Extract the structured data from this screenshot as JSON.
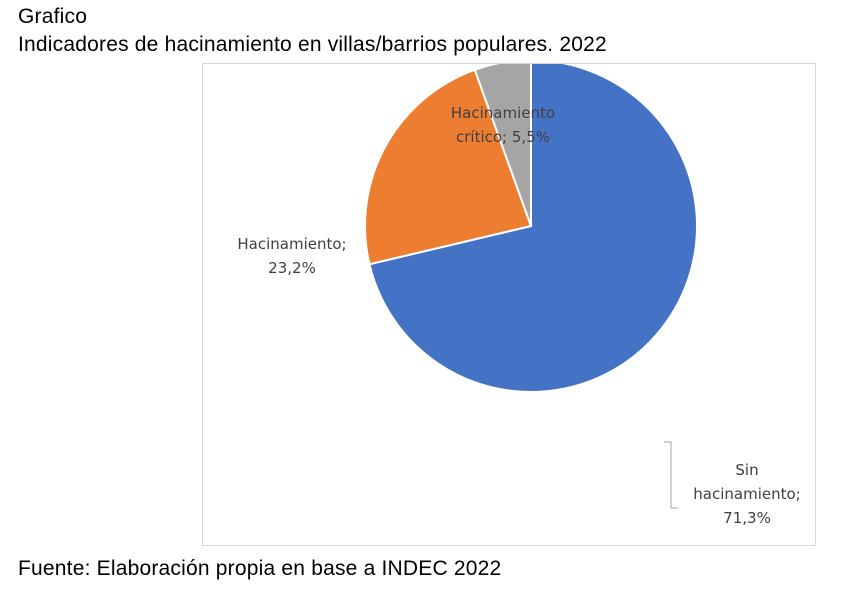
{
  "header": {
    "label": "Grafico",
    "title": "Indicadores de hacinamiento en villas/barrios populares. 2022"
  },
  "chart_data": {
    "type": "pie",
    "categories": [
      "Sin hacinamiento",
      "Hacinamiento",
      "Hacinamiento crítico"
    ],
    "values": [
      71.3,
      23.2,
      5.5
    ],
    "colors": [
      "#4472c4",
      "#ed7d31",
      "#a5a5a5"
    ],
    "labels": [
      [
        "Sin",
        "hacinamiento;",
        "71,3%"
      ],
      [
        "Hacinamiento;",
        "23,2%"
      ],
      [
        "Hacinamiento",
        "crítico; 5,5%"
      ]
    ],
    "start": "top, clockwise",
    "legend": "none"
  },
  "source": "Fuente: Elaboración propia en base a INDEC 2022"
}
